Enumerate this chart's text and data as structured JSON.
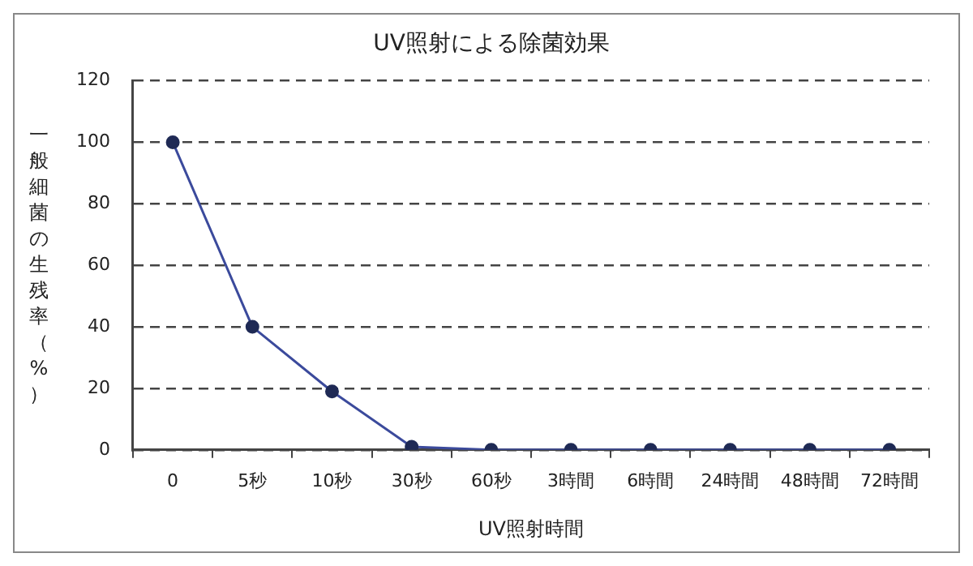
{
  "chart_data": {
    "type": "line",
    "title": "UV照射による除菌効果",
    "xlabel": "UV照射時間",
    "ylabel": "一般細菌の生残率（%）",
    "categories": [
      "0",
      "5秒",
      "10秒",
      "30秒",
      "60秒",
      "3時間",
      "6時間",
      "24時間",
      "48時間",
      "72時間"
    ],
    "series": [
      {
        "color": "#3b4a9c",
        "values": [
          100,
          40,
          19,
          1,
          0,
          0,
          0,
          0,
          0,
          0
        ]
      }
    ],
    "ylim": [
      0,
      120
    ],
    "yticks": [
      0,
      20,
      40,
      60,
      80,
      100,
      120
    ],
    "grid": "y",
    "legend": false,
    "marker": "circle",
    "line_style": "solid"
  }
}
